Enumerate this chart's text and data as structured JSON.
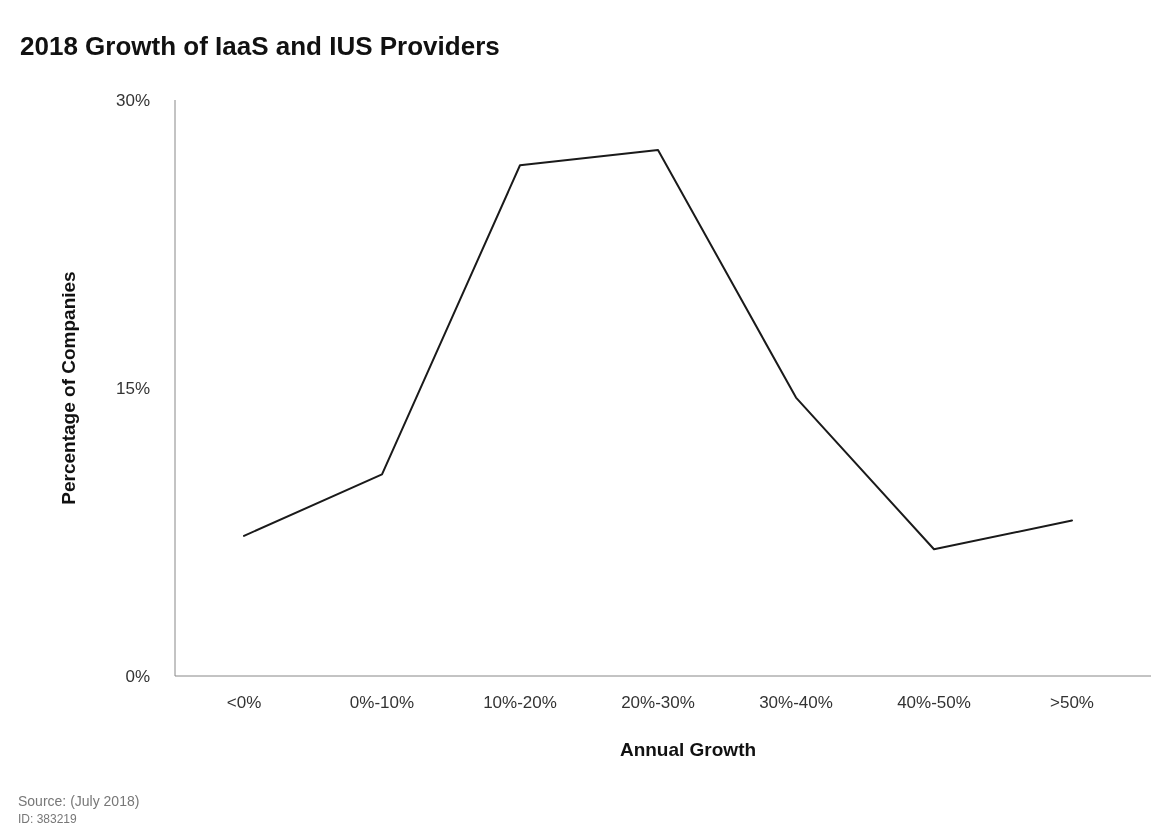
{
  "chart_data": {
    "type": "line",
    "title": "2018 Growth of IaaS and IUS Providers",
    "xlabel": "Annual Growth",
    "ylabel": "Percentage of Companies",
    "categories": [
      "<0%",
      "0%-10%",
      "10%-20%",
      "20%-30%",
      "30%-40%",
      "40%-50%",
      ">50%"
    ],
    "series": [
      {
        "color": "#1a1a1a",
        "values": [
          7.3,
          10.5,
          26.6,
          27.4,
          14.5,
          6.6,
          8.1
        ]
      }
    ],
    "ylim": [
      0,
      30
    ],
    "yticks": [
      {
        "value": 0,
        "label": "0%"
      },
      {
        "value": 15,
        "label": "15%"
      },
      {
        "value": 30,
        "label": "30%"
      }
    ],
    "grid": false,
    "marker": "none",
    "line_style": "solid",
    "annotations": [
      "Source: (July 2018)",
      "ID: 383219"
    ]
  }
}
